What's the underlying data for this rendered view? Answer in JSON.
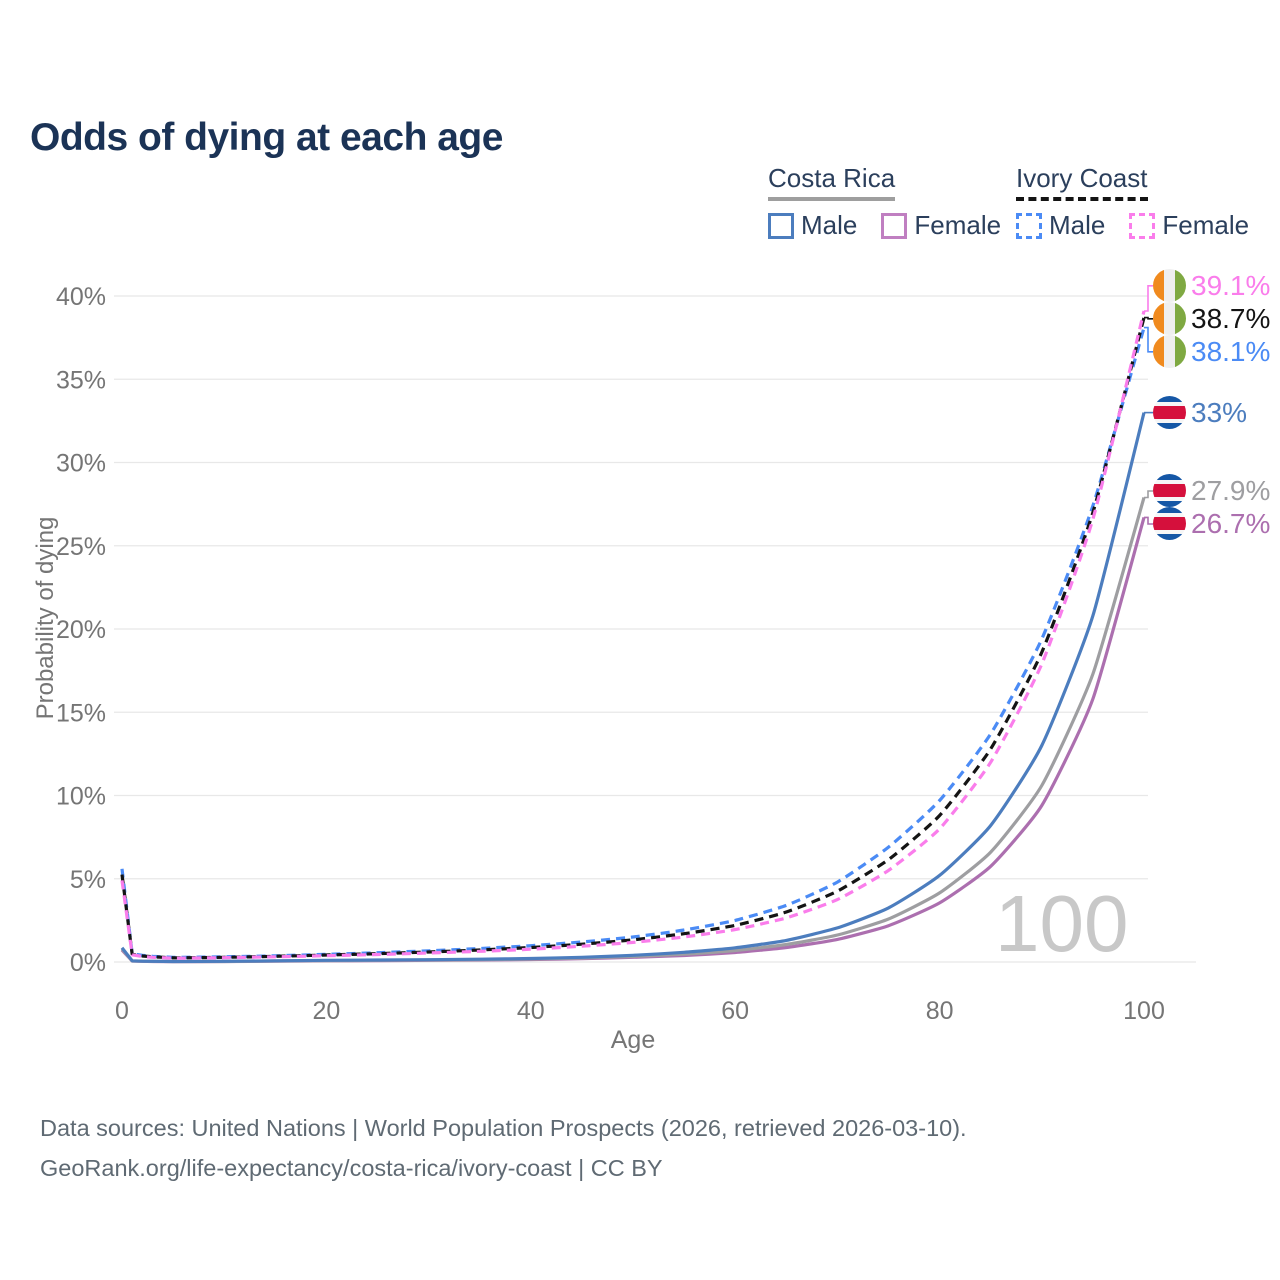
{
  "title": "Odds of dying at each age",
  "legend": {
    "groups": [
      {
        "name": "Costa Rica",
        "line_style": "solid",
        "underline_color": "#9E9E9E",
        "items": [
          {
            "label": "Male",
            "color": "#4C7DBE",
            "dashed": false
          },
          {
            "label": "Female",
            "color": "#C07FC1",
            "dashed": false
          }
        ]
      },
      {
        "name": "Ivory Coast",
        "line_style": "dashed",
        "underline_color": "#141414",
        "items": [
          {
            "label": "Male",
            "color": "#4B8BF5",
            "dashed": true
          },
          {
            "label": "Female",
            "color": "#FA7DEB",
            "dashed": true
          }
        ]
      }
    ]
  },
  "chart_data": {
    "type": "line",
    "title": "Odds of dying at each age",
    "xlabel": "Age",
    "ylabel": "Probability of dying",
    "xlim": [
      0,
      100
    ],
    "ylim": [
      0,
      40
    ],
    "x_ticks": [
      0,
      20,
      40,
      60,
      80,
      100
    ],
    "y_ticks": [
      "0%",
      "5%",
      "10%",
      "15%",
      "20%",
      "25%",
      "30%",
      "35%",
      "40%"
    ],
    "grid": "horizontal",
    "watermark": "100",
    "x": [
      0,
      1,
      2,
      3,
      5,
      10,
      15,
      20,
      25,
      30,
      35,
      40,
      45,
      50,
      55,
      60,
      65,
      70,
      75,
      80,
      85,
      90,
      95,
      100
    ],
    "series": [
      {
        "name": "Ivory Coast Female",
        "country": "Ivory Coast",
        "sex": "Female",
        "flag": "ivory-coast",
        "color": "#FA7DEB",
        "dash": true,
        "end_label": "39.1%",
        "end_value": 39.1,
        "values": [
          4.9,
          0.43,
          0.33,
          0.28,
          0.23,
          0.26,
          0.31,
          0.38,
          0.45,
          0.54,
          0.64,
          0.77,
          0.95,
          1.18,
          1.5,
          1.95,
          2.65,
          3.75,
          5.5,
          8.0,
          12.0,
          17.9,
          26.6,
          39.1
        ]
      },
      {
        "name": "Ivory Coast Combined",
        "country": "Ivory Coast",
        "sex": "Both",
        "flag": "ivory-coast",
        "color": "#141414",
        "dash": true,
        "end_label": "38.7%",
        "end_value": 38.7,
        "values": [
          5.25,
          0.46,
          0.36,
          0.31,
          0.25,
          0.28,
          0.34,
          0.42,
          0.5,
          0.6,
          0.72,
          0.87,
          1.07,
          1.33,
          1.7,
          2.2,
          3.0,
          4.25,
          6.15,
          8.8,
          12.8,
          18.6,
          27.0,
          38.7
        ]
      },
      {
        "name": "Ivory Coast Male",
        "country": "Ivory Coast",
        "sex": "Male",
        "flag": "ivory-coast",
        "color": "#4B8BF5",
        "dash": true,
        "end_label": "38.1%",
        "end_value": 38.1,
        "values": [
          5.6,
          0.5,
          0.4,
          0.34,
          0.28,
          0.31,
          0.37,
          0.46,
          0.56,
          0.67,
          0.81,
          0.98,
          1.2,
          1.5,
          1.92,
          2.5,
          3.4,
          4.8,
          6.9,
          9.7,
          13.7,
          19.4,
          27.4,
          38.1
        ]
      },
      {
        "name": "Costa Rica Male",
        "country": "Costa Rica",
        "sex": "Male",
        "flag": "costa-rica",
        "color": "#4C7DBE",
        "dash": false,
        "end_label": "33%",
        "end_value": 33.0,
        "values": [
          0.85,
          0.07,
          0.05,
          0.04,
          0.03,
          0.04,
          0.07,
          0.1,
          0.12,
          0.14,
          0.17,
          0.21,
          0.28,
          0.4,
          0.58,
          0.85,
          1.3,
          2.05,
          3.25,
          5.2,
          8.2,
          13.0,
          20.8,
          33.0
        ]
      },
      {
        "name": "Costa Rica Combined",
        "country": "Costa Rica",
        "sex": "Both",
        "flag": "costa-rica",
        "color": "#9E9EA1",
        "dash": false,
        "end_label": "27.9%",
        "end_value": 27.9,
        "values": [
          0.78,
          0.06,
          0.05,
          0.04,
          0.03,
          0.03,
          0.06,
          0.08,
          0.1,
          0.12,
          0.14,
          0.18,
          0.24,
          0.33,
          0.47,
          0.69,
          1.05,
          1.62,
          2.58,
          4.15,
          6.6,
          10.6,
          17.3,
          27.9
        ]
      },
      {
        "name": "Costa Rica Female",
        "country": "Costa Rica",
        "sex": "Female",
        "flag": "costa-rica",
        "color": "#AC6FAF",
        "dash": false,
        "end_label": "26.7%",
        "end_value": 26.7,
        "values": [
          0.72,
          0.06,
          0.04,
          0.03,
          0.02,
          0.03,
          0.05,
          0.07,
          0.08,
          0.1,
          0.12,
          0.15,
          0.2,
          0.28,
          0.39,
          0.57,
          0.87,
          1.36,
          2.18,
          3.55,
          5.75,
          9.4,
          15.8,
          26.7
        ]
      }
    ],
    "colors": {
      "grid": "#E8E8E8",
      "axis_text": "#757575",
      "title_text": "#1B3356",
      "watermark": "#C8C8C8"
    }
  },
  "footer": {
    "line1": "Data sources: United Nations | World Population Prospects (2026, retrieved 2026-03-10).",
    "line2": "GeoRank.org/life-expectancy/costa-rica/ivory-coast | CC BY"
  }
}
